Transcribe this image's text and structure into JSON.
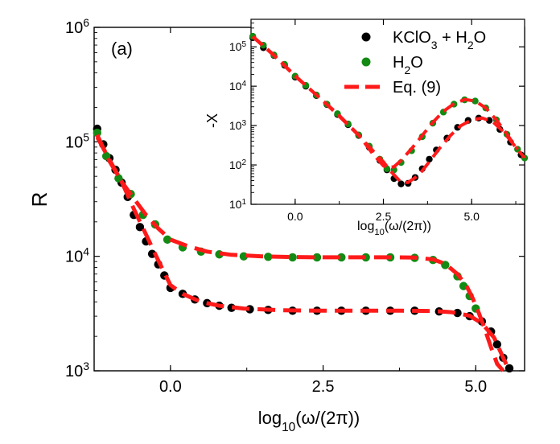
{
  "chart_data": [
    {
      "type": "scatter",
      "panel_label": "(a)",
      "xlabel": "log10(ω/(2π))",
      "ylabel": "R",
      "xlim": [
        -1.25,
        5.8
      ],
      "ylim": [
        1000,
        1000000
      ],
      "yscale": "log",
      "xticks": [
        "0.0",
        "2.5",
        "5.0"
      ],
      "yticks": [
        "10^3",
        "10^4",
        "10^5",
        "10^6"
      ],
      "series": [
        {
          "name": "KClO3 + H2O",
          "marker": "circle",
          "color": "#000000",
          "x": [
            -1.2,
            -1.1,
            -1.0,
            -0.9,
            -0.8,
            -0.7,
            -0.6,
            -0.5,
            -0.4,
            -0.3,
            -0.2,
            -0.1,
            0.0,
            0.2,
            0.4,
            0.6,
            0.8,
            1.0,
            1.3,
            1.6,
            2.0,
            2.4,
            2.8,
            3.2,
            3.6,
            4.0,
            4.4,
            4.7,
            4.9,
            5.1,
            5.25,
            5.35,
            5.45,
            5.55
          ],
          "y": [
            130000,
            95000,
            72000,
            57000,
            44000,
            33000,
            23000,
            18000,
            13500,
            10500,
            8500,
            6800,
            5300,
            4700,
            4200,
            3900,
            3700,
            3550,
            3450,
            3400,
            3350,
            3350,
            3350,
            3350,
            3350,
            3350,
            3300,
            3200,
            3000,
            2700,
            2200,
            1700,
            1300,
            1050
          ]
        },
        {
          "name": "H2O",
          "marker": "circle",
          "color": "#138a13",
          "x": [
            -1.2,
            -1.05,
            -0.85,
            -0.65,
            -0.45,
            -0.25,
            -0.05,
            0.2,
            0.5,
            0.8,
            1.2,
            1.6,
            2.0,
            2.4,
            2.8,
            3.2,
            3.6,
            4.0,
            4.3,
            4.5,
            4.7,
            4.8,
            4.9,
            5.0
          ],
          "y": [
            120000,
            75000,
            48000,
            35000,
            23000,
            19000,
            14000,
            12000,
            11000,
            10400,
            10000,
            9900,
            9800,
            9800,
            9800,
            9800,
            9800,
            9700,
            9300,
            8400,
            6700,
            5500,
            4500,
            3500
          ]
        },
        {
          "name": "Eq. (9)",
          "marker": "dashed-line",
          "color": "#ff1a1a",
          "curves": [
            {
              "x": [
                -1.2,
                -1.0,
                -0.8,
                -0.6,
                -0.4,
                -0.2,
                0.0,
                0.2,
                0.5,
                0.8,
                1.2,
                1.8,
                2.5,
                3.2,
                3.8,
                4.3,
                4.6,
                4.9,
                5.1,
                5.3,
                5.45,
                5.55
              ],
              "y": [
                110000,
                70000,
                45000,
                26000,
                15500,
                9200,
                5600,
                4700,
                4000,
                3700,
                3500,
                3380,
                3350,
                3350,
                3350,
                3330,
                3250,
                3030,
                2600,
                1950,
                1300,
                1000
              ]
            },
            {
              "x": [
                -1.2,
                -1.0,
                -0.8,
                -0.6,
                -0.4,
                -0.2,
                0.0,
                0.3,
                0.6,
                1.0,
                1.5,
                2.0,
                2.5,
                3.0,
                3.5,
                4.0,
                4.3,
                4.5,
                4.7,
                4.85,
                4.95,
                5.05,
                5.15,
                5.25,
                5.35,
                5.45
              ],
              "y": [
                115000,
                68000,
                45000,
                32000,
                23000,
                17500,
                14000,
                12200,
                11000,
                10300,
                10000,
                9850,
                9800,
                9800,
                9800,
                9750,
                9400,
                8600,
                7000,
                5500,
                4300,
                3200,
                2300,
                1600,
                1150,
                1000
              ]
            }
          ]
        }
      ]
    },
    {
      "type": "scatter",
      "inset": true,
      "xlabel": "log10(ω/(2π))",
      "ylabel": "-X",
      "xlim": [
        -1.25,
        6.5
      ],
      "ylim": [
        10,
        500000
      ],
      "yscale": "log",
      "xticks": [
        "0.0",
        "2.5",
        "5.0"
      ],
      "yticks": [
        "10^1",
        "10^2",
        "10^3",
        "10^4",
        "10^5"
      ],
      "legend": [
        "KClO3 + H2O",
        "H2O",
        "Eq. (9)"
      ],
      "series": [
        {
          "name": "KClO3 + H2O",
          "marker": "circle",
          "color": "#000000",
          "x": [
            -1.2,
            -0.9,
            -0.6,
            -0.3,
            0.0,
            0.3,
            0.6,
            0.9,
            1.2,
            1.5,
            1.8,
            2.1,
            2.4,
            2.6,
            2.8,
            3.0,
            3.2,
            3.4,
            3.6,
            3.8,
            4.0,
            4.3,
            4.6,
            4.9,
            5.2,
            5.5,
            5.8,
            6.1,
            6.4
          ],
          "y": [
            170000,
            95000,
            60000,
            34000,
            17000,
            10000,
            5800,
            3400,
            1900,
            1050,
            560,
            280,
            130,
            75,
            45,
            33,
            34,
            48,
            80,
            140,
            240,
            480,
            900,
            1350,
            1550,
            1350,
            800,
            380,
            180
          ]
        },
        {
          "name": "H2O",
          "marker": "circle",
          "color": "#138a13",
          "x": [
            -1.2,
            -0.9,
            -0.6,
            -0.3,
            0.0,
            0.3,
            0.6,
            0.9,
            1.2,
            1.5,
            1.8,
            2.1,
            2.4,
            2.6,
            2.8,
            3.0,
            3.3,
            3.6,
            3.9,
            4.2,
            4.5,
            4.8,
            5.1,
            5.4,
            5.7,
            6.0,
            6.3,
            6.5
          ],
          "y": [
            185000,
            110000,
            62000,
            36000,
            18000,
            10500,
            6000,
            3500,
            2000,
            1100,
            580,
            300,
            140,
            80,
            75,
            115,
            230,
            520,
            1150,
            2200,
            3500,
            4500,
            4200,
            2800,
            1400,
            600,
            250,
            150
          ]
        },
        {
          "name": "Eq. (9)",
          "marker": "dashed-line",
          "color": "#ff1a1a",
          "curves": [
            {
              "x": [
                -1.2,
                -0.6,
                0.0,
                0.6,
                1.2,
                1.8,
                2.2,
                2.5,
                2.7,
                2.9,
                3.0,
                3.2,
                3.5,
                3.8,
                4.1,
                4.4,
                4.7,
                5.0,
                5.3,
                5.6,
                5.9,
                6.2,
                6.5
              ],
              "y": [
                180000,
                60000,
                18000,
                6000,
                1900,
                560,
                230,
                120,
                70,
                45,
                36,
                36,
                55,
                120,
                270,
                560,
                1000,
                1400,
                1550,
                1250,
                700,
                320,
                150
              ]
            },
            {
              "x": [
                -1.2,
                -0.6,
                0.0,
                0.6,
                1.2,
                1.8,
                2.2,
                2.4,
                2.5,
                2.6,
                2.8,
                3.0,
                3.3,
                3.6,
                3.9,
                4.2,
                4.5,
                4.8,
                5.1,
                5.4,
                5.7,
                6.0,
                6.3
              ],
              "y": [
                185000,
                62000,
                18500,
                6000,
                2000,
                580,
                190,
                120,
                95,
                85,
                90,
                130,
                260,
                560,
                1200,
                2300,
                3600,
                4600,
                4200,
                2800,
                1400,
                600,
                250
              ]
            }
          ]
        }
      ]
    }
  ]
}
